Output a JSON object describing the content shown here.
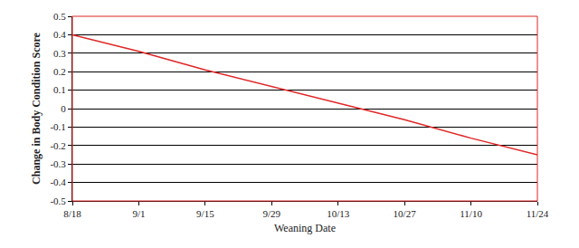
{
  "chart_data": {
    "type": "line",
    "x_label": "Weaning Date",
    "y_label": "Change in Body Condition Score",
    "categories": [
      "8/18",
      "9/1",
      "9/15",
      "9/29",
      "10/13",
      "10/27",
      "11/10",
      "11/24"
    ],
    "values": [
      0.4,
      0.31,
      0.21,
      0.12,
      0.03,
      -0.06,
      -0.16,
      -0.25
    ],
    "color": "#e02626",
    "ylim": [
      -0.5,
      0.5
    ],
    "yticks": [
      -0.5,
      -0.4,
      -0.3,
      -0.2,
      -0.1,
      0,
      0.1,
      0.2,
      0.3,
      0.4,
      0.5
    ],
    "grid": true
  }
}
